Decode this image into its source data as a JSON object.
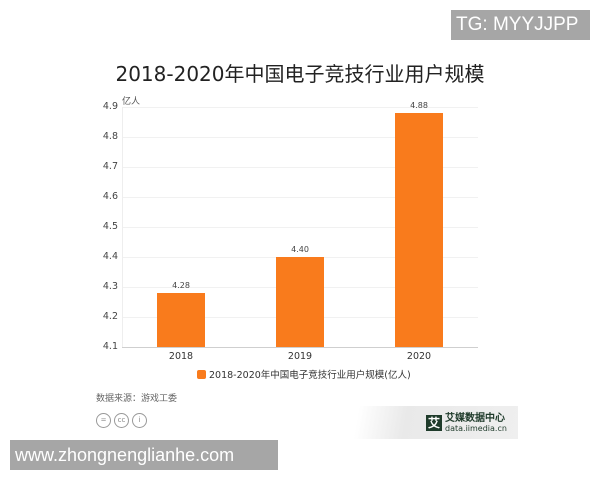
{
  "watermark_top": "TG: MYYJJPP",
  "watermark_bottom": "www.zhongnenglianhe.com",
  "source": "数据来源：游戏工委",
  "cc_icons": [
    "=",
    "cc",
    "i"
  ],
  "logo": {
    "mark": "艾",
    "name": "艾媒数据中心",
    "url": "data.iimedia.cn"
  },
  "colors": {
    "bar": "#f97b1c",
    "grid": "#f1f1f1"
  },
  "chart_data": {
    "type": "bar",
    "title": "2018-2020年中国电子竞技行业用户规模",
    "ylabel": "亿人",
    "xlabel": "",
    "categories": [
      "2018",
      "2019",
      "2020"
    ],
    "series": [
      {
        "name": "2018-2020年中国电子竞技行业用户规模(亿人)",
        "values": [
          4.28,
          4.4,
          4.88
        ],
        "labels": [
          "4.28",
          "4.40",
          "4.88"
        ]
      }
    ],
    "ylim": [
      4.1,
      4.9
    ],
    "yticks": [
      "4.9",
      "4.8",
      "4.7",
      "4.6",
      "4.5",
      "4.4",
      "4.3",
      "4.2",
      "4.1"
    ],
    "grid": true,
    "legend_position": "bottom"
  }
}
